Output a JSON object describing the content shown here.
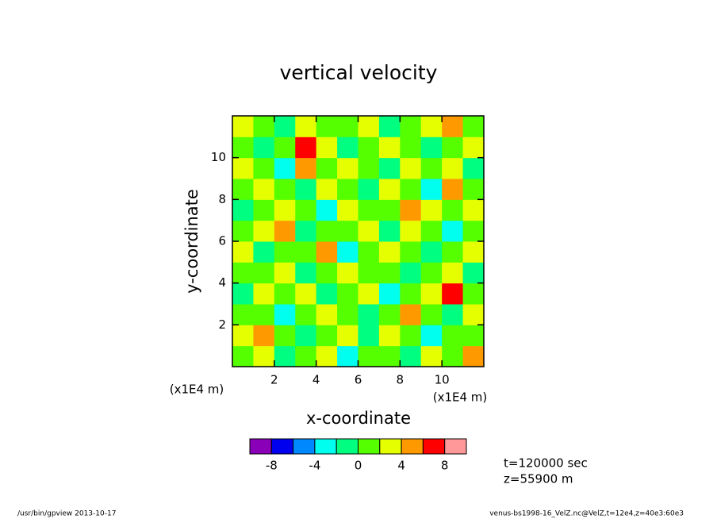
{
  "chart_data": {
    "type": "contour",
    "title": "vertical velocity",
    "xlabel": "x-coordinate",
    "ylabel": "y-coordinate",
    "xunit": "(x1E4 m)",
    "yunit": "(x1E4 m)",
    "xlim": [
      0,
      12
    ],
    "ylim": [
      0,
      12
    ],
    "xticks": [
      2,
      4,
      6,
      8,
      10
    ],
    "yticks": [
      2,
      4,
      6,
      8,
      10
    ],
    "x": [
      0.5,
      1.5,
      2.5,
      3.5,
      4.5,
      5.5,
      6.5,
      7.5,
      8.5,
      9.5,
      10.5,
      11.5
    ],
    "y": [
      0.5,
      1.5,
      2.5,
      3.5,
      4.5,
      5.5,
      6.5,
      7.5,
      8.5,
      9.5,
      10.5,
      11.5
    ],
    "z": [
      [
        1,
        3,
        -1,
        1,
        3,
        -3,
        1,
        1,
        -1,
        3,
        1,
        5
      ],
      [
        3,
        5,
        1,
        -1,
        1,
        3,
        -1,
        3,
        1,
        -3,
        1,
        1
      ],
      [
        1,
        1,
        -3,
        1,
        3,
        1,
        -1,
        1,
        5,
        1,
        -1,
        3
      ],
      [
        -1,
        3,
        1,
        3,
        -1,
        1,
        3,
        -3,
        1,
        3,
        7,
        1
      ],
      [
        1,
        1,
        3,
        -1,
        1,
        3,
        1,
        1,
        -1,
        1,
        3,
        -1
      ],
      [
        3,
        -1,
        1,
        1,
        5,
        -3,
        1,
        3,
        1,
        -1,
        1,
        3
      ],
      [
        1,
        3,
        5,
        -1,
        1,
        1,
        3,
        -1,
        3,
        1,
        -3,
        1
      ],
      [
        -1,
        1,
        3,
        1,
        -3,
        3,
        1,
        1,
        5,
        3,
        1,
        3
      ],
      [
        1,
        3,
        1,
        -1,
        3,
        1,
        -1,
        3,
        1,
        -3,
        5,
        1
      ],
      [
        3,
        1,
        -3,
        5,
        1,
        3,
        1,
        -1,
        3,
        1,
        3,
        -1
      ],
      [
        1,
        -1,
        1,
        7,
        3,
        -1,
        1,
        3,
        1,
        -1,
        1,
        3
      ],
      [
        3,
        1,
        -1,
        3,
        1,
        1,
        3,
        -1,
        1,
        3,
        5,
        1
      ]
    ],
    "colorbar": {
      "levels": [
        -8,
        -6,
        -4,
        -2,
        0,
        2,
        4,
        6,
        8
      ],
      "colors": [
        "#8a00b8",
        "#0000ee",
        "#0088ff",
        "#00ffee",
        "#00ff80",
        "#55ff00",
        "#e6ff00",
        "#ff9900",
        "#ff0000",
        "#ff9999"
      ],
      "ticks": [
        -8,
        -4,
        0,
        4,
        8
      ]
    },
    "annotations": [
      "t=120000 sec",
      "z=55900 m"
    ],
    "footer_left": "/usr/bin/gpview  2013-10-17",
    "footer_right": "venus-bs1998-16_VelZ.nc@VelZ,t=12e4,z=40e3:60e3"
  }
}
